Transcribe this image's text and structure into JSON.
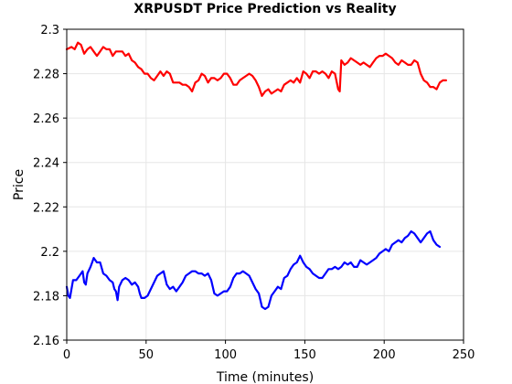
{
  "chart_data": {
    "type": "line",
    "title": "XRPUSDT Price Prediction vs Reality",
    "xlabel": "Time (minutes)",
    "ylabel": "Price",
    "xlim": [
      0,
      250
    ],
    "ylim": [
      2.16,
      2.3
    ],
    "xticks": [
      0,
      50,
      100,
      150,
      200,
      250
    ],
    "xtick_labels": [
      "0",
      "50",
      "100",
      "150",
      "200",
      "250"
    ],
    "yticks": [
      2.16,
      2.18,
      2.2,
      2.22,
      2.24,
      2.26,
      2.28,
      2.3
    ],
    "ytick_labels": [
      "2.16",
      "2.18",
      "2.2",
      "2.22",
      "2.24",
      "2.26",
      "2.28",
      "2.3"
    ],
    "grid": true,
    "legend": false,
    "series": [
      {
        "color": "#ff0000",
        "points": [
          [
            0,
            2.291
          ],
          [
            3,
            2.292
          ],
          [
            5,
            2.291
          ],
          [
            7,
            2.294
          ],
          [
            9,
            2.293
          ],
          [
            11,
            2.289
          ],
          [
            13,
            2.291
          ],
          [
            15,
            2.292
          ],
          [
            17,
            2.29
          ],
          [
            19,
            2.288
          ],
          [
            21,
            2.29
          ],
          [
            23,
            2.292
          ],
          [
            25,
            2.291
          ],
          [
            27,
            2.291
          ],
          [
            29,
            2.288
          ],
          [
            31,
            2.29
          ],
          [
            33,
            2.29
          ],
          [
            35,
            2.29
          ],
          [
            37,
            2.288
          ],
          [
            39,
            2.289
          ],
          [
            41,
            2.286
          ],
          [
            43,
            2.285
          ],
          [
            45,
            2.283
          ],
          [
            47,
            2.282
          ],
          [
            49,
            2.28
          ],
          [
            51,
            2.28
          ],
          [
            53,
            2.278
          ],
          [
            55,
            2.277
          ],
          [
            57,
            2.279
          ],
          [
            59,
            2.281
          ],
          [
            61,
            2.279
          ],
          [
            63,
            2.281
          ],
          [
            65,
            2.28
          ],
          [
            67,
            2.276
          ],
          [
            69,
            2.276
          ],
          [
            71,
            2.276
          ],
          [
            73,
            2.275
          ],
          [
            75,
            2.275
          ],
          [
            77,
            2.274
          ],
          [
            79,
            2.272
          ],
          [
            81,
            2.276
          ],
          [
            83,
            2.277
          ],
          [
            85,
            2.28
          ],
          [
            87,
            2.279
          ],
          [
            89,
            2.276
          ],
          [
            91,
            2.278
          ],
          [
            93,
            2.278
          ],
          [
            95,
            2.277
          ],
          [
            97,
            2.278
          ],
          [
            99,
            2.28
          ],
          [
            101,
            2.28
          ],
          [
            103,
            2.278
          ],
          [
            105,
            2.275
          ],
          [
            107,
            2.275
          ],
          [
            109,
            2.277
          ],
          [
            111,
            2.278
          ],
          [
            113,
            2.279
          ],
          [
            115,
            2.28
          ],
          [
            117,
            2.279
          ],
          [
            119,
            2.277
          ],
          [
            121,
            2.274
          ],
          [
            123,
            2.27
          ],
          [
            125,
            2.272
          ],
          [
            127,
            2.273
          ],
          [
            129,
            2.271
          ],
          [
            131,
            2.272
          ],
          [
            133,
            2.273
          ],
          [
            135,
            2.272
          ],
          [
            137,
            2.275
          ],
          [
            139,
            2.276
          ],
          [
            141,
            2.277
          ],
          [
            143,
            2.276
          ],
          [
            145,
            2.278
          ],
          [
            147,
            2.276
          ],
          [
            149,
            2.281
          ],
          [
            151,
            2.28
          ],
          [
            153,
            2.278
          ],
          [
            155,
            2.281
          ],
          [
            157,
            2.281
          ],
          [
            159,
            2.28
          ],
          [
            161,
            2.281
          ],
          [
            163,
            2.28
          ],
          [
            165,
            2.278
          ],
          [
            167,
            2.281
          ],
          [
            169,
            2.28
          ],
          [
            171,
            2.273
          ],
          [
            172,
            2.272
          ],
          [
            173,
            2.286
          ],
          [
            175,
            2.284
          ],
          [
            177,
            2.285
          ],
          [
            179,
            2.287
          ],
          [
            181,
            2.286
          ],
          [
            183,
            2.285
          ],
          [
            185,
            2.284
          ],
          [
            187,
            2.285
          ],
          [
            189,
            2.284
          ],
          [
            191,
            2.283
          ],
          [
            193,
            2.285
          ],
          [
            195,
            2.287
          ],
          [
            197,
            2.288
          ],
          [
            199,
            2.288
          ],
          [
            201,
            2.289
          ],
          [
            203,
            2.288
          ],
          [
            205,
            2.287
          ],
          [
            207,
            2.285
          ],
          [
            209,
            2.284
          ],
          [
            211,
            2.286
          ],
          [
            213,
            2.285
          ],
          [
            215,
            2.284
          ],
          [
            217,
            2.284
          ],
          [
            219,
            2.286
          ],
          [
            221,
            2.285
          ],
          [
            223,
            2.28
          ],
          [
            225,
            2.277
          ],
          [
            227,
            2.276
          ],
          [
            229,
            2.274
          ],
          [
            231,
            2.274
          ],
          [
            233,
            2.273
          ],
          [
            235,
            2.276
          ],
          [
            237,
            2.277
          ],
          [
            239,
            2.277
          ]
        ]
      },
      {
        "color": "#0000ff",
        "points": [
          [
            0,
            2.184
          ],
          [
            1,
            2.18
          ],
          [
            2,
            2.179
          ],
          [
            3,
            2.183
          ],
          [
            4,
            2.187
          ],
          [
            6,
            2.187
          ],
          [
            8,
            2.189
          ],
          [
            10,
            2.191
          ],
          [
            11,
            2.186
          ],
          [
            12,
            2.185
          ],
          [
            13,
            2.19
          ],
          [
            15,
            2.193
          ],
          [
            16,
            2.195
          ],
          [
            17,
            2.197
          ],
          [
            19,
            2.195
          ],
          [
            21,
            2.195
          ],
          [
            23,
            2.19
          ],
          [
            25,
            2.189
          ],
          [
            27,
            2.187
          ],
          [
            29,
            2.186
          ],
          [
            30,
            2.183
          ],
          [
            31,
            2.182
          ],
          [
            32,
            2.178
          ],
          [
            33,
            2.184
          ],
          [
            35,
            2.187
          ],
          [
            37,
            2.188
          ],
          [
            39,
            2.187
          ],
          [
            41,
            2.185
          ],
          [
            43,
            2.186
          ],
          [
            45,
            2.184
          ],
          [
            46,
            2.181
          ],
          [
            47,
            2.179
          ],
          [
            49,
            2.179
          ],
          [
            51,
            2.18
          ],
          [
            53,
            2.183
          ],
          [
            55,
            2.186
          ],
          [
            57,
            2.189
          ],
          [
            59,
            2.19
          ],
          [
            61,
            2.191
          ],
          [
            63,
            2.185
          ],
          [
            65,
            2.183
          ],
          [
            67,
            2.184
          ],
          [
            69,
            2.182
          ],
          [
            71,
            2.184
          ],
          [
            73,
            2.186
          ],
          [
            75,
            2.189
          ],
          [
            77,
            2.19
          ],
          [
            79,
            2.191
          ],
          [
            81,
            2.191
          ],
          [
            83,
            2.19
          ],
          [
            85,
            2.19
          ],
          [
            87,
            2.189
          ],
          [
            89,
            2.19
          ],
          [
            91,
            2.187
          ],
          [
            93,
            2.181
          ],
          [
            95,
            2.18
          ],
          [
            97,
            2.181
          ],
          [
            99,
            2.182
          ],
          [
            101,
            2.182
          ],
          [
            103,
            2.184
          ],
          [
            105,
            2.188
          ],
          [
            107,
            2.19
          ],
          [
            109,
            2.19
          ],
          [
            111,
            2.191
          ],
          [
            113,
            2.19
          ],
          [
            115,
            2.189
          ],
          [
            117,
            2.186
          ],
          [
            119,
            2.183
          ],
          [
            121,
            2.181
          ],
          [
            123,
            2.175
          ],
          [
            125,
            2.174
          ],
          [
            127,
            2.175
          ],
          [
            129,
            2.18
          ],
          [
            131,
            2.182
          ],
          [
            133,
            2.184
          ],
          [
            135,
            2.183
          ],
          [
            137,
            2.188
          ],
          [
            139,
            2.189
          ],
          [
            141,
            2.192
          ],
          [
            143,
            2.194
          ],
          [
            145,
            2.195
          ],
          [
            147,
            2.198
          ],
          [
            149,
            2.195
          ],
          [
            151,
            2.193
          ],
          [
            153,
            2.192
          ],
          [
            155,
            2.19
          ],
          [
            157,
            2.189
          ],
          [
            159,
            2.188
          ],
          [
            161,
            2.188
          ],
          [
            163,
            2.19
          ],
          [
            165,
            2.192
          ],
          [
            167,
            2.192
          ],
          [
            169,
            2.193
          ],
          [
            171,
            2.192
          ],
          [
            173,
            2.193
          ],
          [
            175,
            2.195
          ],
          [
            177,
            2.194
          ],
          [
            179,
            2.195
          ],
          [
            181,
            2.193
          ],
          [
            183,
            2.193
          ],
          [
            185,
            2.196
          ],
          [
            187,
            2.195
          ],
          [
            189,
            2.194
          ],
          [
            191,
            2.195
          ],
          [
            193,
            2.196
          ],
          [
            195,
            2.197
          ],
          [
            197,
            2.199
          ],
          [
            199,
            2.2
          ],
          [
            201,
            2.201
          ],
          [
            203,
            2.2
          ],
          [
            205,
            2.203
          ],
          [
            207,
            2.204
          ],
          [
            209,
            2.205
          ],
          [
            211,
            2.204
          ],
          [
            213,
            2.206
          ],
          [
            215,
            2.207
          ],
          [
            217,
            2.209
          ],
          [
            219,
            2.208
          ],
          [
            221,
            2.206
          ],
          [
            223,
            2.204
          ],
          [
            225,
            2.206
          ],
          [
            227,
            2.208
          ],
          [
            229,
            2.209
          ],
          [
            231,
            2.205
          ],
          [
            233,
            2.203
          ],
          [
            235,
            2.202
          ]
        ]
      }
    ]
  }
}
